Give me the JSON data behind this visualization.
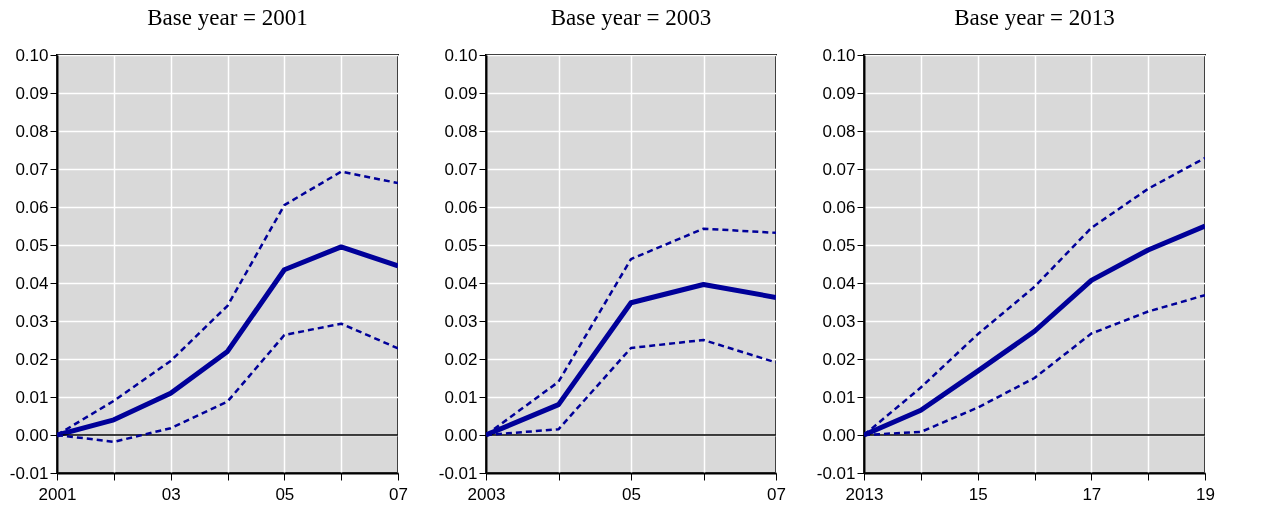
{
  "chart_data": [
    {
      "type": "line",
      "title": "Base year = 2001",
      "x": [
        2001,
        2002,
        2003,
        2004,
        2005,
        2006,
        2007
      ],
      "series": [
        {
          "color": "#000099",
          "line_style": "solid",
          "values": [
            0,
            0.004,
            0.011,
            0.022,
            0.0435,
            0.0495,
            0.0445
          ]
        },
        {
          "color": "#000099",
          "line_style": "dashed",
          "values": [
            0,
            0.009,
            0.0195,
            0.034,
            0.0605,
            0.0693,
            0.0663
          ]
        },
        {
          "color": "#000099",
          "line_style": "dashed",
          "values": [
            0,
            -0.0018,
            0.0018,
            0.0088,
            0.0263,
            0.0293,
            0.0228
          ]
        }
      ],
      "xlim": [
        2001,
        2007
      ],
      "xticks": [
        {
          "value": 2001,
          "label": "2001"
        },
        {
          "value": 2002,
          "label": null
        },
        {
          "value": 2003,
          "label": "03"
        },
        {
          "value": 2004,
          "label": null
        },
        {
          "value": 2005,
          "label": "05"
        },
        {
          "value": 2006,
          "label": null
        },
        {
          "value": 2007,
          "label": "07"
        }
      ],
      "ylim": [
        -0.01,
        0.1
      ],
      "yticks": [
        {
          "value": -0.01,
          "label": "-0.01"
        },
        {
          "value": 0,
          "label": "0.00"
        },
        {
          "value": 0.01,
          "label": "0.01"
        },
        {
          "value": 0.02,
          "label": "0.02"
        },
        {
          "value": 0.03,
          "label": "0.03"
        },
        {
          "value": 0.04,
          "label": "0.04"
        },
        {
          "value": 0.05,
          "label": "0.05"
        },
        {
          "value": 0.06,
          "label": "0.06"
        },
        {
          "value": 0.07,
          "label": "0.07"
        },
        {
          "value": 0.08,
          "label": "0.08"
        },
        {
          "value": 0.09,
          "label": "0.09"
        },
        {
          "value": 0.1,
          "label": "0.10"
        }
      ],
      "ref_lines": [
        {
          "axis": "y",
          "value": 0,
          "color": "#000000"
        }
      ],
      "grid": true,
      "legend": false
    },
    {
      "type": "line",
      "title": "Base year = 2003",
      "x": [
        2003,
        2004,
        2005,
        2006,
        2007
      ],
      "series": [
        {
          "color": "#000099",
          "line_style": "solid",
          "values": [
            0,
            0.008,
            0.0348,
            0.0396,
            0.0362
          ]
        },
        {
          "color": "#000099",
          "line_style": "dashed",
          "values": [
            0,
            0.014,
            0.0463,
            0.0543,
            0.0532
          ]
        },
        {
          "color": "#000099",
          "line_style": "dashed",
          "values": [
            0,
            0.0015,
            0.0229,
            0.025,
            0.0191
          ]
        }
      ],
      "xlim": [
        2003,
        2007
      ],
      "xticks": [
        {
          "value": 2003,
          "label": "2003"
        },
        {
          "value": 2004,
          "label": null
        },
        {
          "value": 2005,
          "label": "05"
        },
        {
          "value": 2006,
          "label": null
        },
        {
          "value": 2007,
          "label": "07"
        }
      ],
      "ylim": [
        -0.01,
        0.1
      ],
      "yticks": [
        {
          "value": -0.01,
          "label": "-0.01"
        },
        {
          "value": 0,
          "label": "0.00"
        },
        {
          "value": 0.01,
          "label": "0.01"
        },
        {
          "value": 0.02,
          "label": "0.02"
        },
        {
          "value": 0.03,
          "label": "0.03"
        },
        {
          "value": 0.04,
          "label": "0.04"
        },
        {
          "value": 0.05,
          "label": "0.05"
        },
        {
          "value": 0.06,
          "label": "0.06"
        },
        {
          "value": 0.07,
          "label": "0.07"
        },
        {
          "value": 0.08,
          "label": "0.08"
        },
        {
          "value": 0.09,
          "label": "0.09"
        },
        {
          "value": 0.1,
          "label": "0.10"
        }
      ],
      "ref_lines": [
        {
          "axis": "y",
          "value": 0,
          "color": "#000000"
        }
      ],
      "grid": true,
      "legend": false
    },
    {
      "type": "line",
      "title": "Base year = 2013",
      "x": [
        2013,
        2014,
        2015,
        2016,
        2017,
        2018,
        2019
      ],
      "series": [
        {
          "color": "#000099",
          "line_style": "solid",
          "values": [
            0,
            0.0065,
            0.0168,
            0.0273,
            0.0407,
            0.0487,
            0.055
          ]
        },
        {
          "color": "#000099",
          "line_style": "dashed",
          "values": [
            0,
            0.0125,
            0.0265,
            0.039,
            0.0545,
            0.0648,
            0.0729
          ]
        },
        {
          "color": "#000099",
          "line_style": "dashed",
          "values": [
            0,
            0.0008,
            0.0072,
            0.015,
            0.0267,
            0.0325,
            0.0368
          ]
        }
      ],
      "xlim": [
        2013,
        2019
      ],
      "xticks": [
        {
          "value": 2013,
          "label": "2013"
        },
        {
          "value": 2014,
          "label": null
        },
        {
          "value": 2015,
          "label": "15"
        },
        {
          "value": 2016,
          "label": null
        },
        {
          "value": 2017,
          "label": "17"
        },
        {
          "value": 2018,
          "label": null
        },
        {
          "value": 2019,
          "label": "19"
        }
      ],
      "ylim": [
        -0.01,
        0.1
      ],
      "yticks": [
        {
          "value": -0.01,
          "label": "-0.01"
        },
        {
          "value": 0,
          "label": "0.00"
        },
        {
          "value": 0.01,
          "label": "0.01"
        },
        {
          "value": 0.02,
          "label": "0.02"
        },
        {
          "value": 0.03,
          "label": "0.03"
        },
        {
          "value": 0.04,
          "label": "0.04"
        },
        {
          "value": 0.05,
          "label": "0.05"
        },
        {
          "value": 0.06,
          "label": "0.06"
        },
        {
          "value": 0.07,
          "label": "0.07"
        },
        {
          "value": 0.08,
          "label": "0.08"
        },
        {
          "value": 0.09,
          "label": "0.09"
        },
        {
          "value": 0.1,
          "label": "0.10"
        }
      ],
      "ref_lines": [
        {
          "axis": "y",
          "value": 0,
          "color": "#000000"
        }
      ],
      "grid": true,
      "legend": false
    }
  ]
}
